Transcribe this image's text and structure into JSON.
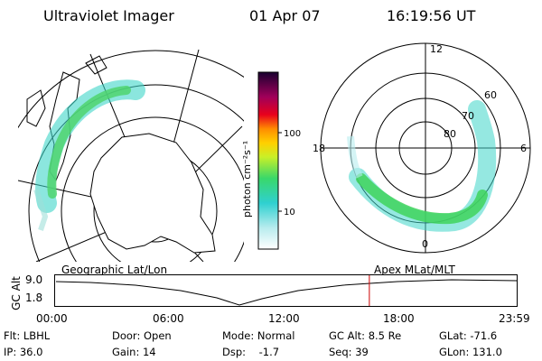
{
  "header": {
    "title": "Ultraviolet Imager",
    "date": "01 Apr 07",
    "time": "16:19:56 UT"
  },
  "colorbar": {
    "unit_label": "photon cm⁻²s⁻¹",
    "ticks": [
      "100",
      "10"
    ]
  },
  "polar_plot": {
    "mlt_labels": [
      "12",
      "18",
      "6",
      "0"
    ],
    "lat_labels": [
      "60",
      "70",
      "80"
    ]
  },
  "panel_labels": {
    "left": "Geographic Lat/Lon",
    "right": "Apex MLat/MLT"
  },
  "altitude_plot": {
    "y_title": "GC Alt",
    "y_ticks": [
      "9.0",
      "1.8"
    ],
    "time_ticks": [
      "00:00",
      "06:00",
      "12:00",
      "18:00",
      "23:59"
    ],
    "marker_time_hours": 16.33
  },
  "status": {
    "flt": "Flt: LBHL",
    "ip": "IP: 36.0",
    "door": "Door: Open",
    "gain": "Gain: 14",
    "mode": "Mode: Normal",
    "dsp": "Dsp:    -1.7",
    "gc_alt": "GC Alt: 8.5 Re",
    "seq": "Seq: 39",
    "glat": "GLat: -71.6",
    "glon": "GLon: 131.0"
  }
}
